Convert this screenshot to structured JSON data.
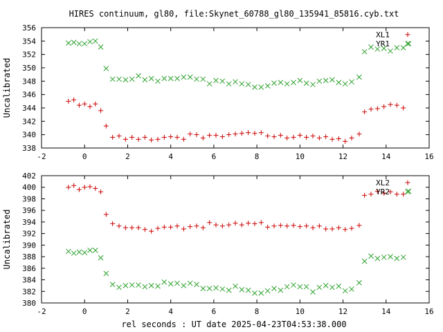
{
  "title": "HIRES continuum, gl80, file:Skynet_60788_gl80_135941_85816.cyb.txt",
  "xlabel": "rel seconds : UT date 2025-04-23T04:53:38.000",
  "colors": {
    "red": "#cc0000",
    "green": "#2ca02c",
    "axis": "#000000"
  },
  "chart_data": [
    {
      "type": "scatter",
      "ylabel": "Uncalibrated",
      "xlim": [
        -2,
        16
      ],
      "ylim": [
        338,
        356
      ],
      "xticks": [
        "-2",
        "0",
        "2",
        "4",
        "6",
        "8",
        "10",
        "12",
        "14",
        "16"
      ],
      "yticks": [
        "338",
        "340",
        "342",
        "344",
        "346",
        "348",
        "350",
        "352",
        "354",
        "356"
      ],
      "legend_position": "top-right",
      "series": [
        {
          "name": "XL1",
          "marker": "plus",
          "color": "#cc0000",
          "points": [
            [
              -0.75,
              345.0
            ],
            [
              -0.5,
              345.2
            ],
            [
              -0.25,
              344.4
            ],
            [
              0.0,
              344.6
            ],
            [
              0.25,
              344.2
            ],
            [
              0.5,
              344.6
            ],
            [
              0.75,
              343.6
            ],
            [
              1.0,
              341.3
            ],
            [
              1.3,
              339.6
            ],
            [
              1.6,
              339.8
            ],
            [
              1.9,
              339.3
            ],
            [
              2.2,
              339.6
            ],
            [
              2.5,
              339.3
            ],
            [
              2.8,
              339.6
            ],
            [
              3.1,
              339.2
            ],
            [
              3.4,
              339.3
            ],
            [
              3.7,
              339.6
            ],
            [
              4.0,
              339.7
            ],
            [
              4.3,
              339.6
            ],
            [
              4.6,
              339.3
            ],
            [
              4.9,
              340.1
            ],
            [
              5.2,
              340.0
            ],
            [
              5.5,
              339.5
            ],
            [
              5.8,
              339.9
            ],
            [
              6.1,
              339.9
            ],
            [
              6.4,
              339.7
            ],
            [
              6.7,
              340.0
            ],
            [
              7.0,
              340.1
            ],
            [
              7.3,
              340.2
            ],
            [
              7.6,
              340.3
            ],
            [
              7.9,
              340.2
            ],
            [
              8.2,
              340.3
            ],
            [
              8.5,
              339.8
            ],
            [
              8.8,
              339.7
            ],
            [
              9.1,
              339.9
            ],
            [
              9.4,
              339.5
            ],
            [
              9.7,
              339.6
            ],
            [
              10.0,
              339.9
            ],
            [
              10.3,
              339.6
            ],
            [
              10.6,
              339.8
            ],
            [
              10.9,
              339.5
            ],
            [
              11.2,
              339.7
            ],
            [
              11.5,
              339.3
            ],
            [
              11.8,
              339.4
            ],
            [
              12.1,
              339.0
            ],
            [
              12.4,
              339.5
            ],
            [
              12.75,
              340.1
            ],
            [
              13.0,
              343.4
            ],
            [
              13.3,
              343.8
            ],
            [
              13.6,
              343.9
            ],
            [
              13.9,
              344.2
            ],
            [
              14.2,
              344.5
            ],
            [
              14.5,
              344.4
            ],
            [
              14.8,
              344.0
            ]
          ]
        },
        {
          "name": "YR1",
          "marker": "cross",
          "color": "#2ca02c",
          "points": [
            [
              -0.75,
              353.7
            ],
            [
              -0.5,
              353.8
            ],
            [
              -0.25,
              353.6
            ],
            [
              0.0,
              353.6
            ],
            [
              0.25,
              353.9
            ],
            [
              0.5,
              354.0
            ],
            [
              0.75,
              353.1
            ],
            [
              1.0,
              349.9
            ],
            [
              1.3,
              348.3
            ],
            [
              1.6,
              348.3
            ],
            [
              1.9,
              348.2
            ],
            [
              2.2,
              348.3
            ],
            [
              2.5,
              348.8
            ],
            [
              2.8,
              348.2
            ],
            [
              3.1,
              348.4
            ],
            [
              3.4,
              348.0
            ],
            [
              3.7,
              348.4
            ],
            [
              4.0,
              348.4
            ],
            [
              4.3,
              348.4
            ],
            [
              4.6,
              348.6
            ],
            [
              4.9,
              348.6
            ],
            [
              5.2,
              348.3
            ],
            [
              5.5,
              348.3
            ],
            [
              5.8,
              347.6
            ],
            [
              6.1,
              348.1
            ],
            [
              6.4,
              348.0
            ],
            [
              6.7,
              347.6
            ],
            [
              7.0,
              347.9
            ],
            [
              7.3,
              347.6
            ],
            [
              7.6,
              347.5
            ],
            [
              7.9,
              347.1
            ],
            [
              8.2,
              347.1
            ],
            [
              8.5,
              347.3
            ],
            [
              8.8,
              347.7
            ],
            [
              9.1,
              347.8
            ],
            [
              9.4,
              347.6
            ],
            [
              9.7,
              347.8
            ],
            [
              10.0,
              348.1
            ],
            [
              10.3,
              347.7
            ],
            [
              10.6,
              347.5
            ],
            [
              10.9,
              348.0
            ],
            [
              11.2,
              348.1
            ],
            [
              11.5,
              348.2
            ],
            [
              11.8,
              347.8
            ],
            [
              12.1,
              347.6
            ],
            [
              12.4,
              347.9
            ],
            [
              12.75,
              348.6
            ],
            [
              13.0,
              352.4
            ],
            [
              13.3,
              353.1
            ],
            [
              13.6,
              352.8
            ],
            [
              13.9,
              352.9
            ],
            [
              14.2,
              352.5
            ],
            [
              14.5,
              353.0
            ],
            [
              14.8,
              353.0
            ],
            [
              15.05,
              353.6
            ]
          ]
        }
      ]
    },
    {
      "type": "scatter",
      "ylabel": "Uncalibrated",
      "xlim": [
        -2,
        16
      ],
      "ylim": [
        380,
        402
      ],
      "xticks": [
        "-2",
        "0",
        "2",
        "4",
        "6",
        "8",
        "10",
        "12",
        "14",
        "16"
      ],
      "yticks": [
        "380",
        "382",
        "384",
        "386",
        "388",
        "390",
        "392",
        "394",
        "396",
        "398",
        "400",
        "402"
      ],
      "legend_position": "top-right",
      "series": [
        {
          "name": "XL2",
          "marker": "plus",
          "color": "#cc0000",
          "points": [
            [
              -0.75,
              400.0
            ],
            [
              -0.5,
              400.3
            ],
            [
              -0.25,
              399.6
            ],
            [
              0.0,
              400.0
            ],
            [
              0.25,
              400.1
            ],
            [
              0.5,
              399.8
            ],
            [
              0.75,
              399.2
            ],
            [
              1.0,
              395.3
            ],
            [
              1.3,
              393.7
            ],
            [
              1.6,
              393.3
            ],
            [
              1.9,
              393.0
            ],
            [
              2.2,
              393.0
            ],
            [
              2.5,
              393.0
            ],
            [
              2.8,
              392.7
            ],
            [
              3.1,
              392.4
            ],
            [
              3.4,
              392.9
            ],
            [
              3.7,
              393.1
            ],
            [
              4.0,
              393.1
            ],
            [
              4.3,
              393.3
            ],
            [
              4.6,
              392.8
            ],
            [
              4.9,
              393.2
            ],
            [
              5.2,
              393.3
            ],
            [
              5.5,
              393.0
            ],
            [
              5.8,
              393.9
            ],
            [
              6.1,
              393.5
            ],
            [
              6.4,
              393.3
            ],
            [
              6.7,
              393.5
            ],
            [
              7.0,
              393.8
            ],
            [
              7.3,
              393.5
            ],
            [
              7.6,
              393.8
            ],
            [
              7.9,
              393.7
            ],
            [
              8.2,
              393.9
            ],
            [
              8.5,
              393.1
            ],
            [
              8.8,
              393.3
            ],
            [
              9.1,
              393.4
            ],
            [
              9.4,
              393.3
            ],
            [
              9.7,
              393.4
            ],
            [
              10.0,
              393.2
            ],
            [
              10.3,
              393.3
            ],
            [
              10.6,
              393.0
            ],
            [
              10.9,
              393.3
            ],
            [
              11.2,
              392.8
            ],
            [
              11.5,
              392.8
            ],
            [
              11.8,
              393.0
            ],
            [
              12.1,
              392.7
            ],
            [
              12.4,
              392.9
            ],
            [
              12.75,
              393.4
            ],
            [
              13.0,
              398.6
            ],
            [
              13.3,
              398.8
            ],
            [
              13.6,
              399.3
            ],
            [
              13.9,
              399.0
            ],
            [
              14.2,
              399.2
            ],
            [
              14.5,
              398.8
            ],
            [
              14.8,
              398.8
            ]
          ]
        },
        {
          "name": "YR2",
          "marker": "cross",
          "color": "#2ca02c",
          "points": [
            [
              -0.75,
              388.9
            ],
            [
              -0.5,
              388.6
            ],
            [
              -0.25,
              388.8
            ],
            [
              0.0,
              388.7
            ],
            [
              0.25,
              389.1
            ],
            [
              0.5,
              389.1
            ],
            [
              0.75,
              387.8
            ],
            [
              1.0,
              385.1
            ],
            [
              1.3,
              383.2
            ],
            [
              1.6,
              382.7
            ],
            [
              1.9,
              383.0
            ],
            [
              2.2,
              383.1
            ],
            [
              2.5,
              383.1
            ],
            [
              2.8,
              382.8
            ],
            [
              3.1,
              383.0
            ],
            [
              3.4,
              382.9
            ],
            [
              3.7,
              383.6
            ],
            [
              4.0,
              383.3
            ],
            [
              4.3,
              383.4
            ],
            [
              4.6,
              383.0
            ],
            [
              4.9,
              383.4
            ],
            [
              5.2,
              383.2
            ],
            [
              5.5,
              382.5
            ],
            [
              5.8,
              382.5
            ],
            [
              6.1,
              382.6
            ],
            [
              6.4,
              382.4
            ],
            [
              6.7,
              382.2
            ],
            [
              7.0,
              382.9
            ],
            [
              7.3,
              382.3
            ],
            [
              7.6,
              382.2
            ],
            [
              7.9,
              381.7
            ],
            [
              8.2,
              381.7
            ],
            [
              8.5,
              382.1
            ],
            [
              8.8,
              382.5
            ],
            [
              9.1,
              382.2
            ],
            [
              9.4,
              382.8
            ],
            [
              9.7,
              383.1
            ],
            [
              10.0,
              382.8
            ],
            [
              10.3,
              382.8
            ],
            [
              10.6,
              381.9
            ],
            [
              10.9,
              382.7
            ],
            [
              11.2,
              383.0
            ],
            [
              11.5,
              382.7
            ],
            [
              11.8,
              382.9
            ],
            [
              12.1,
              382.1
            ],
            [
              12.4,
              382.4
            ],
            [
              12.75,
              383.5
            ],
            [
              13.0,
              387.2
            ],
            [
              13.3,
              388.1
            ],
            [
              13.6,
              387.7
            ],
            [
              13.9,
              387.9
            ],
            [
              14.2,
              388.0
            ],
            [
              14.5,
              387.7
            ],
            [
              14.8,
              387.9
            ],
            [
              15.05,
              399.3
            ]
          ]
        }
      ]
    }
  ]
}
